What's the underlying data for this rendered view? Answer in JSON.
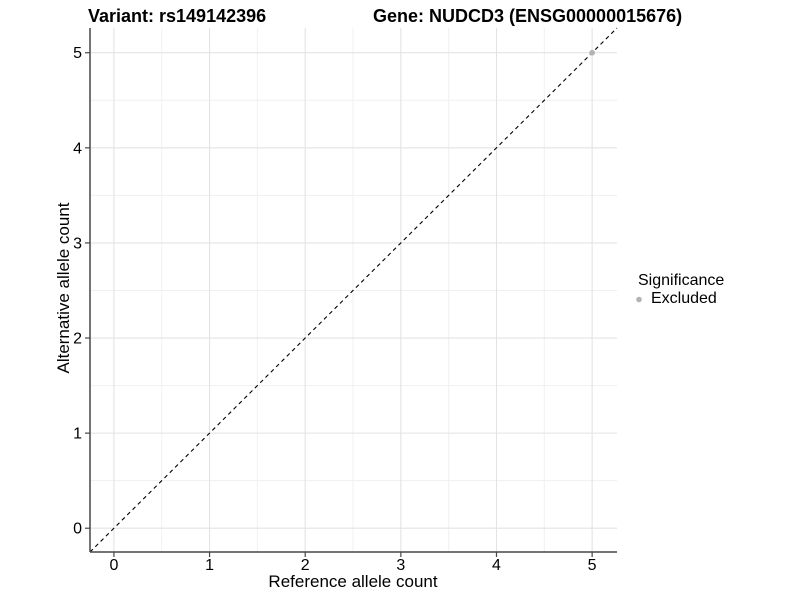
{
  "chart_data": {
    "type": "scatter",
    "title_left": "Variant: rs149142396",
    "title_right": "Gene: NUDCD3 (ENSG00000015676)",
    "xlabel": "Reference allele count",
    "ylabel": "Alternative allele count",
    "xlim": [
      -0.25,
      5.26
    ],
    "ylim": [
      -0.25,
      5.26
    ],
    "x_major_ticks": [
      0,
      1,
      2,
      3,
      4,
      5
    ],
    "x_minor_ticks": [
      0.5,
      1.5,
      2.5,
      3.5,
      4.5
    ],
    "y_major_ticks": [
      0,
      1,
      2,
      3,
      4,
      5
    ],
    "y_minor_ticks": [
      0.5,
      1.5,
      2.5,
      3.5,
      4.5
    ],
    "grid": true,
    "reference_line": {
      "type": "abline",
      "slope": 1,
      "intercept": 0,
      "linetype": "dashed",
      "color": "#000000"
    },
    "series": [
      {
        "name": "Excluded",
        "color": "#b3b3b3",
        "points": [
          {
            "x": 5,
            "y": 5
          }
        ]
      }
    ],
    "legend": {
      "title": "Significance",
      "position": "right",
      "entries": [
        {
          "label": "Excluded",
          "color": "#b3b3b3"
        }
      ]
    },
    "colors": {
      "background": "#ffffff",
      "grid_major": "#e3e3e3",
      "grid_minor": "#f0f0f0",
      "axis_line": "#474747",
      "text": "#000000"
    }
  }
}
